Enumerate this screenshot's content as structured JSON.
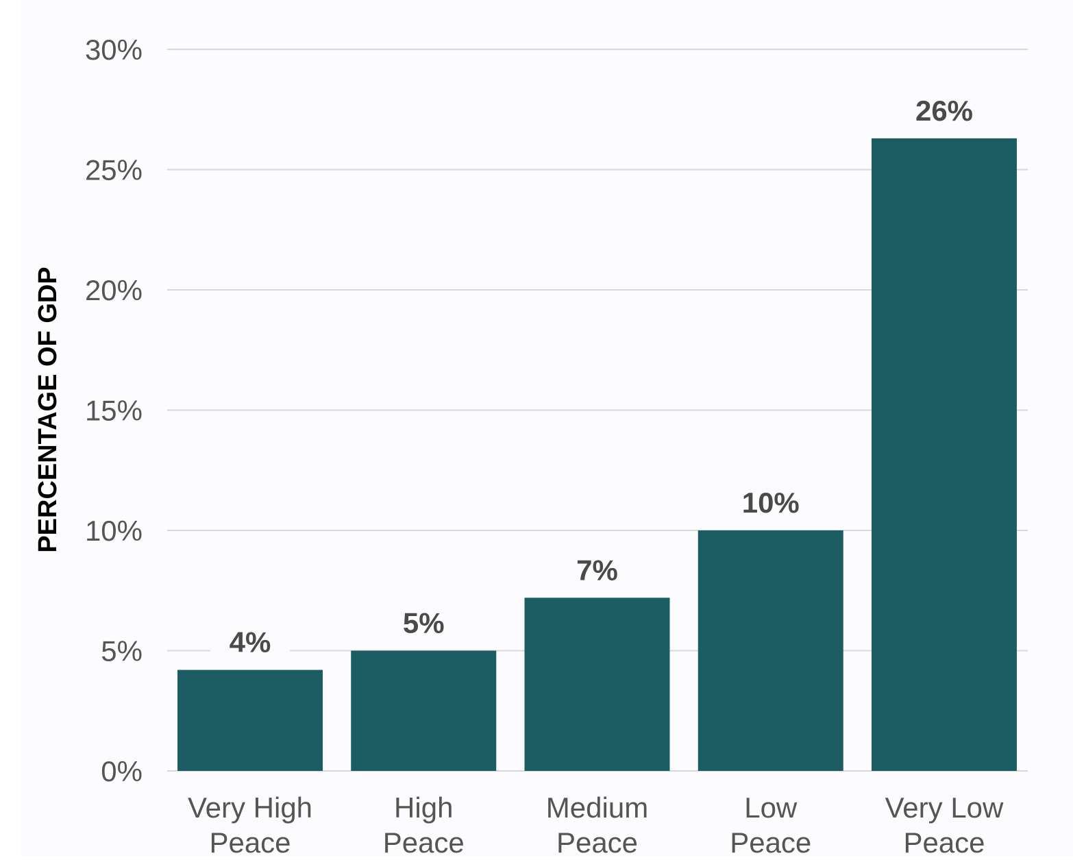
{
  "chart_data": {
    "type": "bar",
    "ylabel": "PERCENTAGE OF GDP",
    "xlabel": "",
    "title": "",
    "ylim": [
      0,
      30
    ],
    "yticks": [
      0,
      5,
      10,
      15,
      20,
      25,
      30
    ],
    "ytick_labels": [
      "0%",
      "5%",
      "10%",
      "15%",
      "20%",
      "25%",
      "30%"
    ],
    "categories": [
      [
        "Very High",
        "Peace"
      ],
      [
        "High",
        "Peace"
      ],
      [
        "Medium",
        "Peace"
      ],
      [
        "Low",
        "Peace"
      ],
      [
        "Very Low",
        "Peace"
      ]
    ],
    "values": [
      4.2,
      5.0,
      7.2,
      10.0,
      26.3
    ],
    "value_labels": [
      "4%",
      "5%",
      "7%",
      "10%",
      "26%"
    ],
    "grid": true,
    "legend": "none",
    "colors": {
      "bar": "#1b5d63",
      "grid": "#d7d7dd",
      "tick_text": "#555555",
      "value_text": "#4a4a4a",
      "ylabel_text": "#000000",
      "plot_bg": "#fcfcfe",
      "page_bg": "#ffffff"
    }
  }
}
